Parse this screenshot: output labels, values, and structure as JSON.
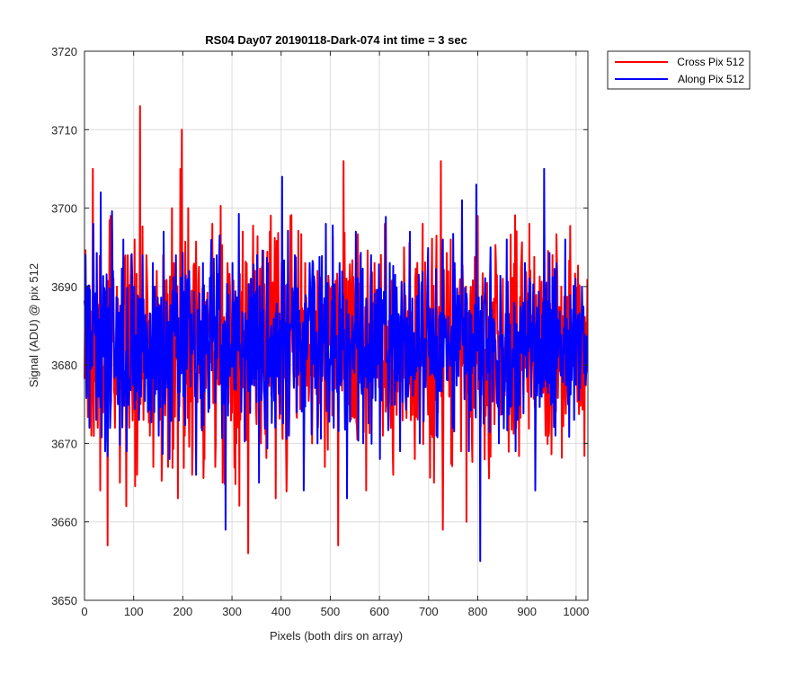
{
  "chart_data": {
    "type": "line",
    "title": "RS04 Day07 20190118-Dark-074 int time = 3 sec",
    "xlabel": "Pixels (both dirs on array)",
    "ylabel": "Signal (ADU) @ pix 512",
    "xlim": [
      0,
      1024
    ],
    "ylim": [
      3650,
      3720
    ],
    "xticks": [
      0,
      100,
      200,
      300,
      400,
      500,
      600,
      700,
      800,
      900,
      1000
    ],
    "yticks": [
      3650,
      3660,
      3670,
      3680,
      3690,
      3700,
      3710,
      3720
    ],
    "grid": true,
    "legend_position": "outside-top-right",
    "series": [
      {
        "name": "Cross Pix 512",
        "color": "#ff0000",
        "n_points": 1024,
        "mean": 3682.5,
        "noise_sd": 6.5,
        "x": [
          5,
          14,
          17,
          27,
          32,
          36,
          47,
          53,
          62,
          66,
          72,
          80,
          85,
          88,
          91,
          95,
          102,
          107,
          113,
          120,
          126,
          133,
          140,
          147,
          153,
          160,
          170,
          178,
          182,
          190,
          195,
          198,
          204,
          211,
          219,
          232,
          244,
          257,
          260,
          266,
          281,
          291,
          309,
          322,
          333,
          347,
          359,
          377,
          389,
          401,
          412,
          419,
          431,
          449,
          463,
          474,
          489,
          503,
          516,
          527,
          538,
          541,
          561,
          573,
          590,
          607,
          611,
          628,
          650,
          672,
          688,
          711,
          725,
          729,
          745,
          766,
          777,
          800,
          822,
          851,
          878,
          905,
          938,
          970,
          1005
        ],
        "y": [
          3690,
          3671,
          3705,
          3672,
          3664,
          3680,
          3657,
          3699,
          3672,
          3690,
          3665,
          3692,
          3662,
          3694,
          3672,
          3694,
          3696,
          3666,
          3713,
          3673,
          3694,
          3671,
          3667,
          3692,
          3673,
          3694,
          3667,
          3700,
          3693,
          3663,
          3705,
          3710,
          3671,
          3700,
          3666,
          3691,
          3668,
          3693,
          3698,
          3667,
          3665,
          3693,
          3670,
          3697,
          3656,
          3692,
          3670,
          3697,
          3663,
          3693,
          3668,
          3699,
          3674,
          3693,
          3670,
          3692,
          3667,
          3690,
          3657,
          3706,
          3675,
          3690,
          3694,
          3664,
          3693,
          3671,
          3698,
          3666,
          3695,
          3668,
          3698,
          3665,
          3706,
          3659,
          3696,
          3669,
          3660,
          3699,
          3669,
          3691,
          3672,
          3698,
          3671,
          3690,
          3678
        ]
      },
      {
        "name": "Along Pix 512",
        "color": "#0000ff",
        "n_points": 1024,
        "mean": 3682.5,
        "noise_sd": 5.5,
        "x": [
          2,
          10,
          18,
          24,
          33,
          42,
          58,
          68,
          79,
          86,
          101,
          111,
          118,
          129,
          139,
          151,
          161,
          173,
          186,
          201,
          213,
          227,
          241,
          252,
          269,
          287,
          301,
          319,
          339,
          355,
          373,
          388,
          402,
          416,
          428,
          446,
          458,
          474,
          491,
          507,
          519,
          534,
          552,
          567,
          583,
          601,
          621,
          642,
          662,
          682,
          698,
          716,
          729,
          749,
          768,
          782,
          797,
          805,
          826,
          843,
          859,
          877,
          896,
          917,
          935,
          958,
          978,
          996,
          1012
        ],
        "y": [
          3694,
          3672,
          3698,
          3673,
          3702,
          3669,
          3692,
          3675,
          3696,
          3669,
          3690,
          3673,
          3694,
          3674,
          3693,
          3671,
          3697,
          3668,
          3694,
          3676,
          3692,
          3666,
          3693,
          3674,
          3694,
          3659,
          3693,
          3674,
          3691,
          3665,
          3693,
          3672,
          3704,
          3671,
          3694,
          3664,
          3693,
          3670,
          3698,
          3672,
          3693,
          3663,
          3697,
          3670,
          3694,
          3668,
          3693,
          3669,
          3697,
          3670,
          3692,
          3671,
          3696,
          3672,
          3701,
          3669,
          3703,
          3655,
          3695,
          3670,
          3696,
          3669,
          3693,
          3664,
          3705,
          3671,
          3696,
          3673,
          3690
        ]
      }
    ]
  }
}
